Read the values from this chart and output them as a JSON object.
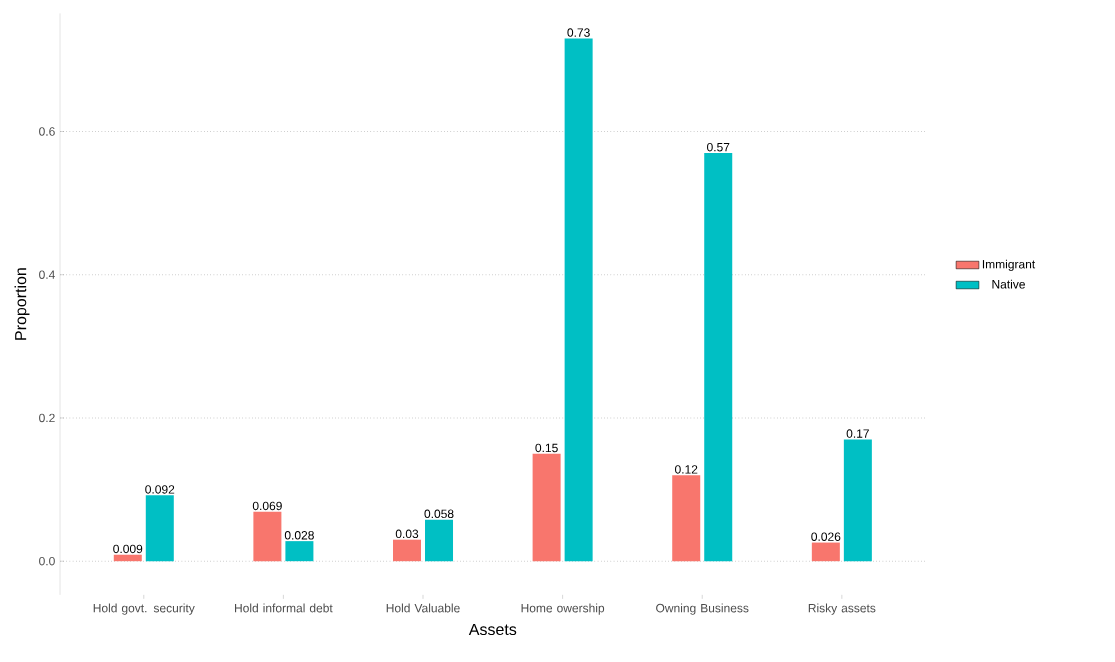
{
  "chart_data": {
    "type": "bar",
    "xlabel": "Assets",
    "ylabel": "Proportion",
    "categories": [
      "Hold govt. security",
      "Hold informal debt",
      "Hold Valuable",
      "Home owership",
      "Owning Business",
      "Risky assets"
    ],
    "series": [
      {
        "name": "Immigrant",
        "color": "#f8766d",
        "values": [
          0.009,
          0.069,
          0.03,
          0.15,
          0.12,
          0.026
        ]
      },
      {
        "name": "Native",
        "color": "#00bfc4",
        "values": [
          0.092,
          0.028,
          0.058,
          0.73,
          0.57,
          0.17
        ]
      }
    ],
    "ylim": [
      -0.047,
      0.765
    ],
    "yticks": [
      {
        "value": 0,
        "label": "0.0"
      },
      {
        "value": 0.2,
        "label": "0.2"
      },
      {
        "value": 0.4,
        "label": "0.4"
      },
      {
        "value": 0.6,
        "label": "0.6"
      }
    ],
    "grid": "y",
    "legend": "right",
    "data_labels": true
  }
}
